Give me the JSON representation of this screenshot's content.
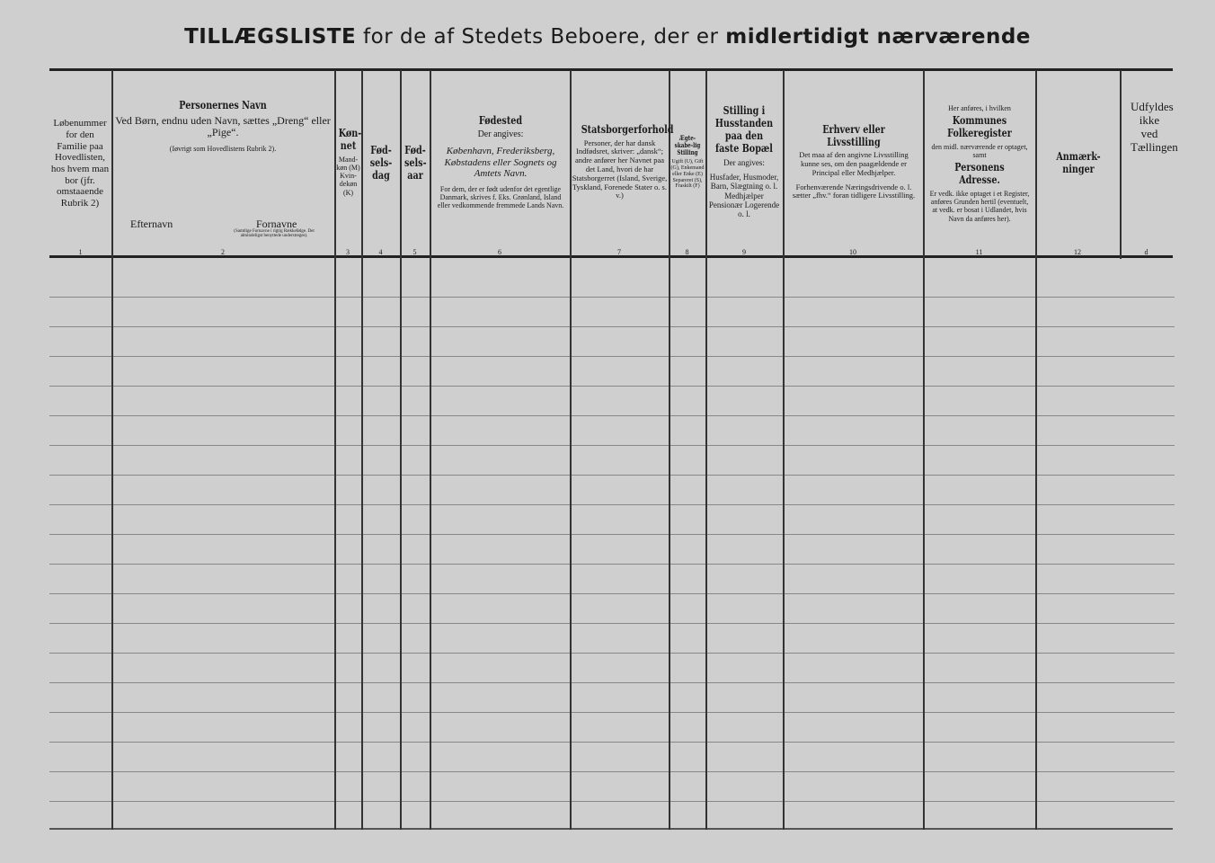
{
  "title": {
    "main": "TILLÆGSLISTE",
    "rest": "for de af Stedets Beboere, der er",
    "bold_end": "midlertidigt nærværende"
  },
  "columns": [
    {
      "num": "1",
      "lines": [
        "Løbenummer for den Familie paa Hovedlisten, hos hvem man bor (jfr. omstaaende Rubrik 2)"
      ]
    },
    {
      "num": "2",
      "heading": "Personernes Navn",
      "lines": [
        "Ved Børn, endnu uden Navn, sættes „Dreng“ eller „Pige“.",
        "(Iøvrigt som Hovedlistens Rubrik 2)."
      ],
      "sub_left": "Efternavn",
      "sub_right": "Fornavne",
      "sub_note": "(Samtlige Fornavne i rigtig Rækkefølge. Det almindeligst benyttede understreges)."
    },
    {
      "num": "3",
      "heading": "Køn-net",
      "lines": [
        "Mand-køn (M) Kvin-dekøn (K)"
      ]
    },
    {
      "num": "4",
      "heading": "Fød-sels-dag",
      "lines": []
    },
    {
      "num": "5",
      "heading": "Fød-sels-aar",
      "lines": []
    },
    {
      "num": "6",
      "heading": "Fødested",
      "lines": [
        "Der angives:",
        "København, Frederiksberg, Købstadens eller Sognets og Amtets Navn.",
        "For dem, der er født udenfor det egentlige Danmark, skrives f. Eks. Grønland, Island eller vedkommende fremmede Lands Navn."
      ]
    },
    {
      "num": "7",
      "heading": "Statsborgerforhold",
      "lines": [
        "Personer, der har dansk Indfødsret, skriver: „dansk“; andre anfører her Navnet paa det Land, hvori de har Statsborgerret (Island, Sverige, Tyskland, Forenede Stater o. s. v.)"
      ]
    },
    {
      "num": "8",
      "heading": "Ægte-skabe-lig Stilling",
      "lines": [
        "Ugift (U), Gift (G), Enkemand eller Enke (E) Separeret (S), Fraskilt (F)"
      ]
    },
    {
      "num": "9",
      "heading": "Stilling i Husstanden paa den faste Bopæl",
      "lines": [
        "Der angives:",
        "Husfader, Husmoder, Barn, Slægtning o. l. Medhjælper Pensionær Logerende o. l."
      ]
    },
    {
      "num": "10",
      "heading": "Erhverv eller Livsstilling",
      "lines": [
        "Det maa af den angivne Livsstilling kunne ses, om den paagældende er Principal eller Medhjælper.",
        "Forhenværende Næringsdrivende o. l. sætter „fhv.“ foran tidligere Livsstilling."
      ]
    },
    {
      "num": "11",
      "pre": "Her anføres, i hvilken",
      "heading": "Kommunes Folkeregister",
      "lines": [
        "den midl. nærværende er optaget, samt"
      ],
      "heading2": "Personens Adresse.",
      "lines2": [
        "Er vedk. ikke optaget i et Register, anføres Grunden hertil (eventuelt, at vedk. er bosat i Udlandet, hvis Navn da anføres her)."
      ]
    },
    {
      "num": "12",
      "heading": "Anmærk-ninger",
      "lines": []
    },
    {
      "num": "d",
      "lines": [
        "Udfyldes ikke ved Tællingen"
      ]
    }
  ]
}
